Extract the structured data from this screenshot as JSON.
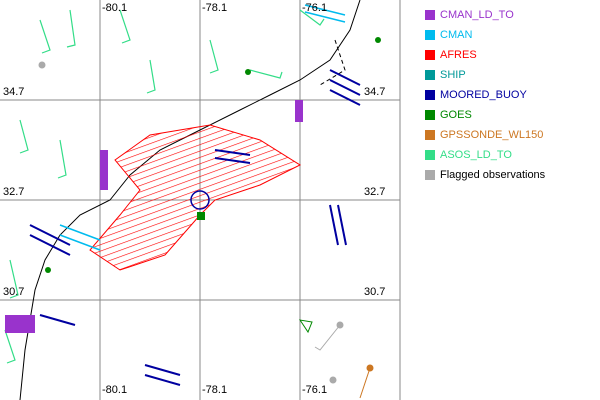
{
  "map": {
    "grid": {
      "longitudes": [
        "-80.1",
        "-78.1",
        "-76.1"
      ],
      "latitudes": [
        "34.7",
        "32.7",
        "30.7"
      ]
    },
    "legend": [
      {
        "label": "CMAN_LD_TO",
        "color": "#9933cc",
        "text_color": "#9933cc"
      },
      {
        "label": "CMAN",
        "color": "#00bbee",
        "text_color": "#00bbee"
      },
      {
        "label": "AFRES",
        "color": "#ff0000",
        "text_color": "#ff0000"
      },
      {
        "label": "SHIP",
        "color": "#009999",
        "text_color": "#009999"
      },
      {
        "label": "MOORED_BUOY",
        "color": "#0000a0",
        "text_color": "#0000a0"
      },
      {
        "label": "GOES",
        "color": "#008800",
        "text_color": "#008800"
      },
      {
        "label": "GPSSONDE_WL150",
        "color": "#cc7722",
        "text_color": "#cc7722"
      },
      {
        "label": "ASOS_LD_TO",
        "color": "#33dd88",
        "text_color": "#33dd88"
      },
      {
        "label": "Flagged observations",
        "color": "#aaaaaa",
        "text_color": "#000000"
      }
    ]
  }
}
